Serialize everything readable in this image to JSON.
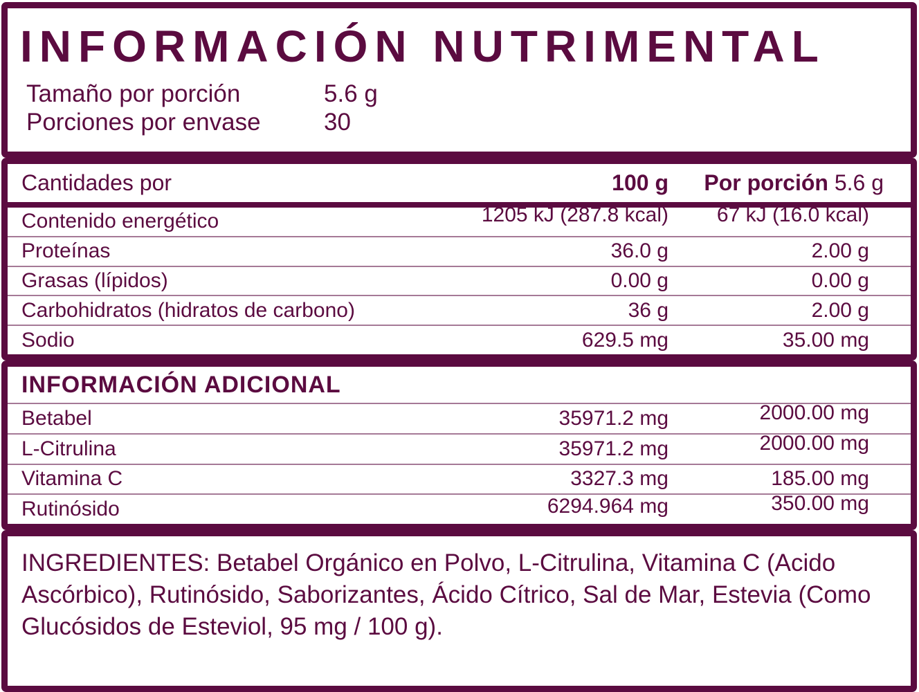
{
  "colors": {
    "maroon": "#5B0B40",
    "background": "#FFFFFF"
  },
  "header": {
    "title": "INFORMACIÓN NUTRIMENTAL",
    "serving_size_label": "Tamaño por porción",
    "serving_size_value": "5.6 g",
    "servings_per_container_label": "Porciones por envase",
    "servings_per_container_value": "30"
  },
  "nutrition_table": {
    "amounts_label": "Cantidades por",
    "col_100g": "100 g",
    "col_portion_label": "Por porción",
    "col_portion_value": "5.6 g",
    "rows": [
      {
        "label": "Contenido energético",
        "per_100g": "1205 kJ (287.8 kcal)",
        "per_portion": "67 kJ (16.0 kcal)"
      },
      {
        "label": "Proteínas",
        "per_100g": "36.0 g",
        "per_portion": "2.00 g"
      },
      {
        "label": "Grasas (lípidos)",
        "per_100g": "0.00 g",
        "per_portion": "0.00 g"
      },
      {
        "label": "Carbohidratos (hidratos de carbono)",
        "per_100g": "36 g",
        "per_portion": "2.00 g"
      },
      {
        "label": "Sodio",
        "per_100g": "629.5 mg",
        "per_portion": "35.00 mg"
      }
    ]
  },
  "additional_info": {
    "title": "INFORMACIÓN ADICIONAL",
    "rows": [
      {
        "label": "Betabel",
        "per_100g": "35971.2 mg",
        "per_portion": "2000.00 mg"
      },
      {
        "label": "L-Citrulina",
        "per_100g": "35971.2 mg",
        "per_portion": "2000.00 mg"
      },
      {
        "label": "Vitamina C",
        "per_100g": "3327.3 mg",
        "per_portion": "185.00 mg"
      },
      {
        "label": "Rutinósido",
        "per_100g": "6294.964 mg",
        "per_portion": "350.00 mg"
      }
    ]
  },
  "ingredients": {
    "text": "INGREDIENTES: Betabel Orgánico en Polvo, L-Citrulina, Vitamina C (Acido Ascórbico), Rutinósido, Saborizantes, Ácido Cítrico, Sal de Mar, Estevia (Como Glucósidos de Esteviol, 95 mg / 100 g)."
  }
}
